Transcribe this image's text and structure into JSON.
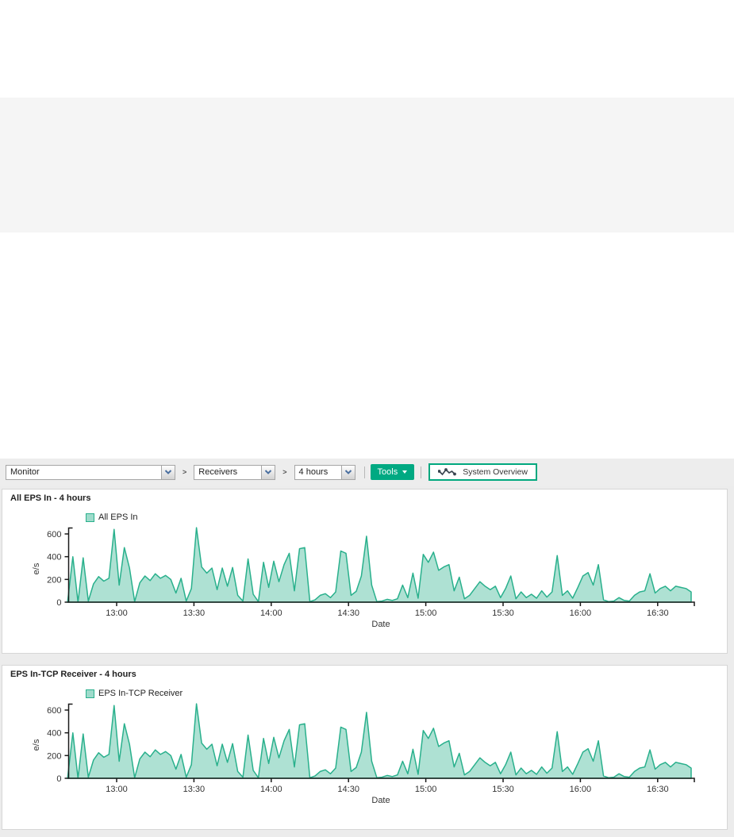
{
  "toolbar": {
    "separator": ">",
    "selects": [
      {
        "name": "monitor-select",
        "value": "Monitor"
      },
      {
        "name": "receivers-select",
        "value": "Receivers"
      },
      {
        "name": "range-select",
        "value": "4 hours"
      }
    ],
    "tools_label": "Tools",
    "system_overview_label": "System Overview"
  },
  "colors": {
    "accent_green": "#00a982",
    "overview_border": "#00a87e",
    "chart_stroke": "#29b08c",
    "chart_fill": "rgba(41,176,140,0.38)",
    "axis": "#1a1a1a",
    "band_gray": "#f5f5f5",
    "toolbar_gray": "#ededed"
  },
  "chart_data": [
    {
      "type": "area",
      "title": "All EPS In - 4 hours",
      "legend": "All EPS In",
      "ylabel": "e/s",
      "xlabel": "Date",
      "yticks": [
        0,
        200,
        400,
        600
      ],
      "ylim": [
        0,
        660
      ],
      "xticks": [
        "13:00",
        "13:30",
        "14:00",
        "14:30",
        "15:00",
        "15:30",
        "16:00",
        "16:30"
      ],
      "tick_minutes": [
        780,
        810,
        840,
        870,
        900,
        930,
        960,
        990
      ],
      "x_start_min": 761,
      "step_min": 2,
      "grid": false,
      "legend_position": "top-left",
      "values": [
        10,
        400,
        0,
        390,
        10,
        160,
        225,
        185,
        210,
        640,
        150,
        480,
        300,
        5,
        170,
        230,
        190,
        250,
        210,
        235,
        200,
        80,
        210,
        10,
        120,
        655,
        310,
        255,
        300,
        110,
        300,
        140,
        305,
        60,
        10,
        380,
        70,
        5,
        350,
        130,
        360,
        180,
        330,
        430,
        100,
        470,
        480,
        5,
        20,
        60,
        75,
        40,
        90,
        450,
        430,
        60,
        95,
        230,
        580,
        150,
        5,
        10,
        25,
        15,
        30,
        150,
        40,
        255,
        35,
        420,
        350,
        440,
        280,
        310,
        330,
        100,
        220,
        30,
        60,
        120,
        180,
        140,
        110,
        140,
        40,
        120,
        230,
        30,
        90,
        40,
        70,
        35,
        100,
        45,
        90,
        410,
        60,
        100,
        35,
        130,
        230,
        260,
        150,
        330,
        20,
        5,
        10,
        40,
        15,
        10,
        60,
        90,
        100,
        250,
        80,
        120,
        140,
        100,
        140,
        130,
        120,
        90
      ]
    },
    {
      "type": "area",
      "title": "EPS In-TCP Receiver - 4 hours",
      "legend": "EPS In-TCP Receiver",
      "ylabel": "e/s",
      "xlabel": "Date",
      "yticks": [
        0,
        200,
        400,
        600
      ],
      "ylim": [
        0,
        660
      ],
      "xticks": [
        "13:00",
        "13:30",
        "14:00",
        "14:30",
        "15:00",
        "15:30",
        "16:00",
        "16:30"
      ],
      "tick_minutes": [
        780,
        810,
        840,
        870,
        900,
        930,
        960,
        990
      ],
      "x_start_min": 761,
      "step_min": 2,
      "grid": false,
      "legend_position": "top-left",
      "values": [
        10,
        400,
        0,
        390,
        10,
        160,
        225,
        185,
        210,
        640,
        150,
        480,
        300,
        5,
        170,
        230,
        190,
        250,
        210,
        235,
        200,
        80,
        210,
        10,
        120,
        655,
        310,
        255,
        300,
        110,
        300,
        140,
        305,
        60,
        10,
        380,
        70,
        5,
        350,
        130,
        360,
        180,
        330,
        430,
        100,
        470,
        480,
        5,
        20,
        60,
        75,
        40,
        90,
        450,
        430,
        60,
        95,
        230,
        580,
        150,
        5,
        10,
        25,
        15,
        30,
        150,
        40,
        255,
        35,
        420,
        350,
        440,
        280,
        310,
        330,
        100,
        220,
        30,
        60,
        120,
        180,
        140,
        110,
        140,
        40,
        120,
        230,
        30,
        90,
        40,
        70,
        35,
        100,
        45,
        90,
        410,
        60,
        100,
        35,
        130,
        230,
        260,
        150,
        330,
        20,
        5,
        10,
        40,
        15,
        10,
        60,
        90,
        100,
        250,
        80,
        120,
        140,
        100,
        140,
        130,
        120,
        90
      ]
    }
  ]
}
